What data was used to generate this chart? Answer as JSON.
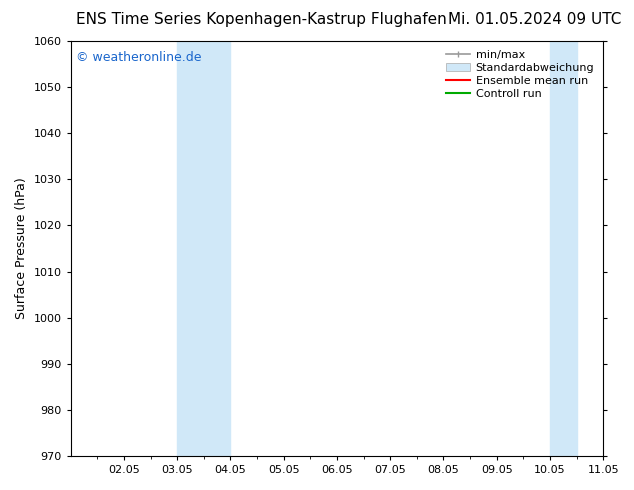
{
  "title_left": "ENS Time Series Kopenhagen-Kastrup Flughafen",
  "title_right": "Mi. 01.05.2024 09 UTC",
  "ylabel": "Surface Pressure (hPa)",
  "ylim": [
    970,
    1060
  ],
  "yticks": [
    970,
    980,
    990,
    1000,
    1010,
    1020,
    1030,
    1040,
    1050,
    1060
  ],
  "xtick_labels": [
    "02.05",
    "03.05",
    "04.05",
    "05.05",
    "06.05",
    "07.05",
    "08.05",
    "09.05",
    "10.05",
    "11.05"
  ],
  "bg_color": "#ffffff",
  "plot_bg_color": "#ffffff",
  "watermark_text": "© weatheronline.de",
  "watermark_color": "#1a66cc",
  "watermark_fontsize": 9,
  "legend_fontsize": 8,
  "title_fontsize": 11,
  "axis_label_fontsize": 9,
  "tick_fontsize": 8,
  "shaded_regions": [
    {
      "day_start": 3,
      "day_end": 4,
      "color": "#d0e8f8",
      "alpha": 1.0
    },
    {
      "day_start": 10,
      "day_end": 11,
      "color": "#d0e8f8",
      "alpha": 1.0
    },
    {
      "day_start": 11,
      "day_end": 11.5,
      "color": "#d0e8f8",
      "alpha": 1.0
    }
  ]
}
